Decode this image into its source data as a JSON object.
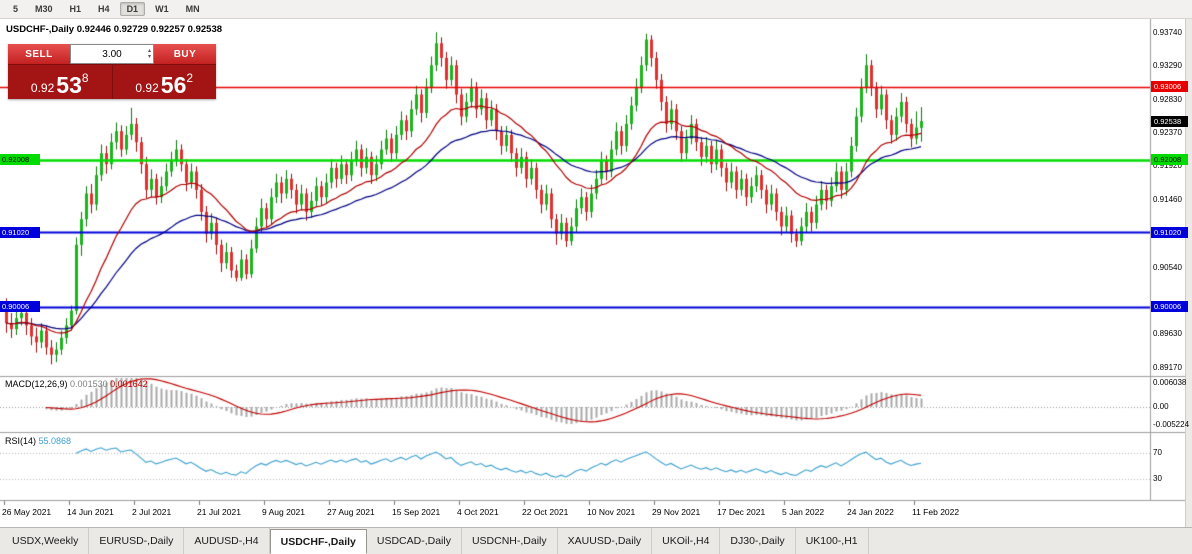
{
  "toolbar": {
    "timeframes": [
      "5",
      "M30",
      "H1",
      "H4",
      "D1",
      "W1",
      "MN"
    ],
    "active": "D1"
  },
  "chart": {
    "header": "USDCHF-,Daily 0.92446 0.92729 0.92257 0.92538"
  },
  "trade": {
    "sell_label": "SELL",
    "buy_label": "BUY",
    "volume": "3.00",
    "sell": {
      "base": "0.92",
      "big": "53",
      "sup": "8"
    },
    "buy": {
      "base": "0.92",
      "big": "56",
      "sup": "2"
    }
  },
  "price_axis": {
    "ticks": [
      "0.93740",
      "0.93290",
      "0.92830",
      "0.92370",
      "0.91920",
      "0.91460",
      "0.90540",
      "0.89630",
      "0.89170"
    ],
    "tags": [
      {
        "label": "0.93006",
        "price": 0.93006,
        "bg": "#e80000",
        "fg": "#ffffff",
        "name": "resistance-red-price-tag",
        "interactable": true
      },
      {
        "label": "0.92538",
        "price": 0.92538,
        "bg": "#000000",
        "fg": "#ffffff",
        "name": "last-price-tag",
        "interactable": false
      },
      {
        "label": "0.92008",
        "price": 0.92008,
        "bg": "#00dc00",
        "fg": "#000000",
        "name": "support-green-price-tag",
        "interactable": true
      },
      {
        "label": "0.91020",
        "price": 0.9102,
        "bg": "#0000dc",
        "fg": "#ffffff",
        "name": "support-blue-upper-price-tag",
        "interactable": true
      },
      {
        "label": "0.90006",
        "price": 0.90006,
        "bg": "#0000dc",
        "fg": "#ffffff",
        "name": "support-blue-lower-price-tag",
        "interactable": true
      }
    ],
    "left_tags": [
      {
        "label": "0.92008",
        "price": 0.92008,
        "bg": "#00dc00",
        "fg": "#000000"
      },
      {
        "label": "0.91020",
        "price": 0.9102,
        "bg": "#0000dc",
        "fg": "#ffffff"
      },
      {
        "label": "0.90006",
        "price": 0.90006,
        "bg": "#0000dc",
        "fg": "#ffffff"
      }
    ]
  },
  "macd_panel": {
    "name": "MACD(12,26,9)",
    "value_main": "0.001530",
    "value_signal": "0.001642",
    "axis": [
      "0.006038",
      "0.00",
      "-0.005224"
    ]
  },
  "rsi_panel": {
    "name": "RSI(14)",
    "value": "55.0868",
    "levels": [
      "70",
      "30"
    ]
  },
  "dates": [
    "26 May 2021",
    "14 Jun 2021",
    "2 Jul 2021",
    "21 Jul 2021",
    "9 Aug 2021",
    "27 Aug 2021",
    "15 Sep 2021",
    "4 Oct 2021",
    "22 Oct 2021",
    "10 Nov 2021",
    "29 Nov 2021",
    "17 Dec 2021",
    "5 Jan 2022",
    "24 Jan 2022",
    "11 Feb 2022"
  ],
  "tabs": [
    {
      "label": "USDX,Weekly",
      "active": false
    },
    {
      "label": "EURUSD-,Daily",
      "active": false
    },
    {
      "label": "AUDUSD-,H4",
      "active": false
    },
    {
      "label": "USDCHF-,Daily",
      "active": true
    },
    {
      "label": "USDCAD-,Daily",
      "active": false
    },
    {
      "label": "USDCNH-,Daily",
      "active": false
    },
    {
      "label": "XAUUSD-,Daily",
      "active": false
    },
    {
      "label": "UKOil-,H4",
      "active": false
    },
    {
      "label": "DJ30-,Daily",
      "active": false
    },
    {
      "label": "UK100-,H1",
      "active": false
    }
  ],
  "chart_data": {
    "type": "candlestick",
    "symbol": "USDCHF-",
    "timeframe": "Daily",
    "last_ohlc": {
      "open": 0.92446,
      "high": 0.92729,
      "low": 0.92257,
      "close": 0.92538
    },
    "y_axis_range": [
      0.8917,
      0.9374
    ],
    "levels": [
      {
        "price": 0.93006,
        "color": "#e80000",
        "width": 1.4
      },
      {
        "price": 0.92008,
        "color": "#00dc00",
        "width": 2.6
      },
      {
        "price": 0.9102,
        "color": "#0000dc",
        "width": 2
      },
      {
        "price": 0.90006,
        "color": "#0000dc",
        "width": 2
      }
    ],
    "indicators": {
      "ma_fast_ema": 20,
      "ma_slow_ema": 40,
      "macd": [
        12,
        26,
        9
      ],
      "rsi": 14
    },
    "colors": {
      "bull": "#1cb41c",
      "bull_border": "#0b7a0b",
      "bear": "#e03030",
      "bear_border": "#9c1010",
      "ma_fast": "#b00000",
      "ma_slow": "#000080",
      "macd_hist": "#a8a8a8",
      "macd_signal": "#c00000",
      "rsi": "#3da0d0"
    },
    "ohlc": [
      [
        0.8995,
        0.9012,
        0.8965,
        0.8978
      ],
      [
        0.8978,
        0.8992,
        0.8958,
        0.897
      ],
      [
        0.897,
        0.8996,
        0.8962,
        0.8985
      ],
      [
        0.8985,
        0.9005,
        0.8975,
        0.8992
      ],
      [
        0.8992,
        0.9,
        0.8962,
        0.8975
      ],
      [
        0.8975,
        0.8985,
        0.8948,
        0.896
      ],
      [
        0.896,
        0.8972,
        0.8938,
        0.8952
      ],
      [
        0.8952,
        0.8978,
        0.8944,
        0.8968
      ],
      [
        0.8968,
        0.8975,
        0.8935,
        0.8945
      ],
      [
        0.8945,
        0.8955,
        0.8922,
        0.8935
      ],
      [
        0.8935,
        0.8952,
        0.8925,
        0.8942
      ],
      [
        0.8942,
        0.8968,
        0.8935,
        0.8958
      ],
      [
        0.8958,
        0.8985,
        0.895,
        0.8975
      ],
      [
        0.8975,
        0.9002,
        0.8968,
        0.8995
      ],
      [
        0.8995,
        0.9095,
        0.899,
        0.9085
      ],
      [
        0.9085,
        0.913,
        0.907,
        0.912
      ],
      [
        0.912,
        0.9165,
        0.911,
        0.9155
      ],
      [
        0.9155,
        0.9168,
        0.9128,
        0.914
      ],
      [
        0.914,
        0.9192,
        0.9132,
        0.918
      ],
      [
        0.918,
        0.9222,
        0.9172,
        0.921
      ],
      [
        0.921,
        0.922,
        0.9182,
        0.9195
      ],
      [
        0.9195,
        0.9237,
        0.9188,
        0.9225
      ],
      [
        0.9225,
        0.9252,
        0.9215,
        0.924
      ],
      [
        0.924,
        0.9248,
        0.9205,
        0.9215
      ],
      [
        0.9215,
        0.9247,
        0.9208,
        0.9235
      ],
      [
        0.9235,
        0.9272,
        0.9228,
        0.925
      ],
      [
        0.925,
        0.9258,
        0.9212,
        0.9225
      ],
      [
        0.9225,
        0.9232,
        0.9182,
        0.9195
      ],
      [
        0.9195,
        0.9205,
        0.9148,
        0.916
      ],
      [
        0.916,
        0.9188,
        0.915,
        0.9175
      ],
      [
        0.9175,
        0.9182,
        0.914,
        0.915
      ],
      [
        0.915,
        0.9178,
        0.9142,
        0.9165
      ],
      [
        0.9165,
        0.9196,
        0.9158,
        0.9185
      ],
      [
        0.9185,
        0.9212,
        0.9178,
        0.92
      ],
      [
        0.92,
        0.9228,
        0.9192,
        0.9215
      ],
      [
        0.9215,
        0.9222,
        0.9185,
        0.9195
      ],
      [
        0.9195,
        0.9202,
        0.9158,
        0.917
      ],
      [
        0.917,
        0.9196,
        0.9162,
        0.9185
      ],
      [
        0.9185,
        0.9192,
        0.9148,
        0.916
      ],
      [
        0.916,
        0.9168,
        0.9118,
        0.913
      ],
      [
        0.913,
        0.9138,
        0.9088,
        0.91
      ],
      [
        0.91,
        0.9128,
        0.9092,
        0.9115
      ],
      [
        0.9115,
        0.9122,
        0.9072,
        0.9085
      ],
      [
        0.9085,
        0.9092,
        0.9048,
        0.906
      ],
      [
        0.906,
        0.9088,
        0.9052,
        0.9075
      ],
      [
        0.9075,
        0.9082,
        0.904,
        0.905
      ],
      [
        0.905,
        0.9058,
        0.9035,
        0.904
      ],
      [
        0.904,
        0.9078,
        0.9036,
        0.9065
      ],
      [
        0.9065,
        0.9072,
        0.9038,
        0.9045
      ],
      [
        0.9045,
        0.9092,
        0.904,
        0.908
      ],
      [
        0.908,
        0.9122,
        0.9074,
        0.911
      ],
      [
        0.911,
        0.9148,
        0.9102,
        0.9135
      ],
      [
        0.9135,
        0.9142,
        0.9108,
        0.912
      ],
      [
        0.912,
        0.9162,
        0.9112,
        0.915
      ],
      [
        0.915,
        0.9182,
        0.9142,
        0.917
      ],
      [
        0.917,
        0.9178,
        0.9142,
        0.9155
      ],
      [
        0.9155,
        0.9187,
        0.9148,
        0.9175
      ],
      [
        0.9175,
        0.9182,
        0.9148,
        0.916
      ],
      [
        0.916,
        0.9168,
        0.9128,
        0.914
      ],
      [
        0.914,
        0.9167,
        0.9132,
        0.9155
      ],
      [
        0.9155,
        0.9162,
        0.9118,
        0.913
      ],
      [
        0.913,
        0.9157,
        0.9122,
        0.9145
      ],
      [
        0.9145,
        0.9177,
        0.9138,
        0.9165
      ],
      [
        0.9165,
        0.9172,
        0.9138,
        0.915
      ],
      [
        0.915,
        0.9182,
        0.9142,
        0.917
      ],
      [
        0.917,
        0.9202,
        0.9162,
        0.919
      ],
      [
        0.919,
        0.9197,
        0.9163,
        0.9175
      ],
      [
        0.9175,
        0.9207,
        0.9168,
        0.9195
      ],
      [
        0.9195,
        0.9202,
        0.9168,
        0.918
      ],
      [
        0.918,
        0.9212,
        0.9172,
        0.92
      ],
      [
        0.92,
        0.9227,
        0.9192,
        0.9215
      ],
      [
        0.9215,
        0.9222,
        0.9178,
        0.919
      ],
      [
        0.919,
        0.9217,
        0.9182,
        0.9205
      ],
      [
        0.9205,
        0.9212,
        0.9168,
        0.918
      ],
      [
        0.918,
        0.9207,
        0.9172,
        0.9195
      ],
      [
        0.9195,
        0.9227,
        0.9188,
        0.9215
      ],
      [
        0.9215,
        0.9242,
        0.9208,
        0.923
      ],
      [
        0.923,
        0.9237,
        0.9198,
        0.921
      ],
      [
        0.921,
        0.9247,
        0.9202,
        0.9235
      ],
      [
        0.9235,
        0.9267,
        0.9228,
        0.9255
      ],
      [
        0.9255,
        0.9262,
        0.9228,
        0.924
      ],
      [
        0.924,
        0.9282,
        0.9232,
        0.927
      ],
      [
        0.927,
        0.9302,
        0.9262,
        0.929
      ],
      [
        0.929,
        0.9297,
        0.9252,
        0.9265
      ],
      [
        0.9265,
        0.9312,
        0.9258,
        0.93
      ],
      [
        0.93,
        0.9342,
        0.9292,
        0.933
      ],
      [
        0.933,
        0.9375,
        0.9322,
        0.936
      ],
      [
        0.936,
        0.9368,
        0.9328,
        0.934
      ],
      [
        0.934,
        0.9348,
        0.9298,
        0.931
      ],
      [
        0.931,
        0.9342,
        0.9302,
        0.933
      ],
      [
        0.933,
        0.9337,
        0.9278,
        0.929
      ],
      [
        0.929,
        0.9298,
        0.9248,
        0.926
      ],
      [
        0.926,
        0.9292,
        0.9252,
        0.928
      ],
      [
        0.928,
        0.9312,
        0.9272,
        0.93
      ],
      [
        0.93,
        0.9307,
        0.9258,
        0.927
      ],
      [
        0.927,
        0.9297,
        0.9262,
        0.9285
      ],
      [
        0.9285,
        0.9292,
        0.9243,
        0.9255
      ],
      [
        0.9255,
        0.9282,
        0.9247,
        0.927
      ],
      [
        0.927,
        0.9277,
        0.9228,
        0.924
      ],
      [
        0.924,
        0.9247,
        0.9208,
        0.922
      ],
      [
        0.922,
        0.9247,
        0.9212,
        0.9235
      ],
      [
        0.9235,
        0.9242,
        0.9198,
        0.921
      ],
      [
        0.921,
        0.9217,
        0.9178,
        0.919
      ],
      [
        0.919,
        0.9217,
        0.9182,
        0.9205
      ],
      [
        0.9205,
        0.9212,
        0.9163,
        0.9175
      ],
      [
        0.9175,
        0.9202,
        0.9167,
        0.919
      ],
      [
        0.919,
        0.9197,
        0.9148,
        0.916
      ],
      [
        0.916,
        0.9167,
        0.9128,
        0.914
      ],
      [
        0.914,
        0.9167,
        0.9132,
        0.9155
      ],
      [
        0.9155,
        0.9162,
        0.9108,
        0.912
      ],
      [
        0.912,
        0.9127,
        0.9085,
        0.91
      ],
      [
        0.91,
        0.9127,
        0.9092,
        0.9115
      ],
      [
        0.9115,
        0.9122,
        0.9082,
        0.909
      ],
      [
        0.909,
        0.9122,
        0.9084,
        0.911
      ],
      [
        0.911,
        0.9147,
        0.9102,
        0.9135
      ],
      [
        0.9135,
        0.9162,
        0.9127,
        0.915
      ],
      [
        0.915,
        0.9157,
        0.9118,
        0.913
      ],
      [
        0.913,
        0.9167,
        0.9122,
        0.9155
      ],
      [
        0.9155,
        0.9187,
        0.9147,
        0.9175
      ],
      [
        0.9175,
        0.9212,
        0.9167,
        0.92
      ],
      [
        0.92,
        0.9207,
        0.9173,
        0.9185
      ],
      [
        0.9185,
        0.9227,
        0.9177,
        0.9215
      ],
      [
        0.9215,
        0.9252,
        0.9207,
        0.924
      ],
      [
        0.924,
        0.9247,
        0.9208,
        0.922
      ],
      [
        0.922,
        0.9262,
        0.9212,
        0.925
      ],
      [
        0.925,
        0.9287,
        0.9242,
        0.9275
      ],
      [
        0.9275,
        0.9312,
        0.9267,
        0.93
      ],
      [
        0.93,
        0.9342,
        0.9292,
        0.933
      ],
      [
        0.933,
        0.9373,
        0.9322,
        0.9365
      ],
      [
        0.9365,
        0.9371,
        0.9328,
        0.934
      ],
      [
        0.934,
        0.9348,
        0.9298,
        0.931
      ],
      [
        0.931,
        0.9318,
        0.9268,
        0.928
      ],
      [
        0.928,
        0.9288,
        0.9238,
        0.925
      ],
      [
        0.925,
        0.9282,
        0.9242,
        0.927
      ],
      [
        0.927,
        0.9277,
        0.9228,
        0.924
      ],
      [
        0.924,
        0.9247,
        0.9198,
        0.921
      ],
      [
        0.921,
        0.9242,
        0.9202,
        0.923
      ],
      [
        0.923,
        0.9262,
        0.9222,
        0.925
      ],
      [
        0.925,
        0.9257,
        0.9213,
        0.9225
      ],
      [
        0.9225,
        0.9232,
        0.9193,
        0.9205
      ],
      [
        0.9205,
        0.9232,
        0.9197,
        0.922
      ],
      [
        0.922,
        0.9227,
        0.9183,
        0.9195
      ],
      [
        0.9195,
        0.9227,
        0.9187,
        0.9215
      ],
      [
        0.9215,
        0.9222,
        0.9178,
        0.919
      ],
      [
        0.919,
        0.9197,
        0.9158,
        0.917
      ],
      [
        0.917,
        0.9197,
        0.9162,
        0.9185
      ],
      [
        0.9185,
        0.9192,
        0.9148,
        0.916
      ],
      [
        0.916,
        0.9187,
        0.9152,
        0.9175
      ],
      [
        0.9175,
        0.9182,
        0.9138,
        0.915
      ],
      [
        0.915,
        0.9177,
        0.9142,
        0.9165
      ],
      [
        0.9165,
        0.9192,
        0.9157,
        0.918
      ],
      [
        0.918,
        0.9187,
        0.9148,
        0.916
      ],
      [
        0.916,
        0.9167,
        0.9128,
        0.914
      ],
      [
        0.914,
        0.9167,
        0.9132,
        0.9155
      ],
      [
        0.9155,
        0.9162,
        0.9118,
        0.913
      ],
      [
        0.913,
        0.9137,
        0.9098,
        0.911
      ],
      [
        0.911,
        0.9137,
        0.9102,
        0.9125
      ],
      [
        0.9125,
        0.9132,
        0.9088,
        0.91
      ],
      [
        0.91,
        0.9107,
        0.9082,
        0.909
      ],
      [
        0.909,
        0.9122,
        0.9084,
        0.911
      ],
      [
        0.911,
        0.9142,
        0.9102,
        0.913
      ],
      [
        0.913,
        0.9137,
        0.9103,
        0.9115
      ],
      [
        0.9115,
        0.9152,
        0.9107,
        0.914
      ],
      [
        0.914,
        0.9172,
        0.9132,
        0.916
      ],
      [
        0.916,
        0.9167,
        0.9133,
        0.9145
      ],
      [
        0.9145,
        0.9177,
        0.9137,
        0.9165
      ],
      [
        0.9165,
        0.9197,
        0.9157,
        0.9185
      ],
      [
        0.9185,
        0.9192,
        0.9148,
        0.916
      ],
      [
        0.916,
        0.9197,
        0.9152,
        0.9185
      ],
      [
        0.9185,
        0.9232,
        0.9177,
        0.922
      ],
      [
        0.922,
        0.9272,
        0.9212,
        0.926
      ],
      [
        0.926,
        0.9312,
        0.9252,
        0.93
      ],
      [
        0.93,
        0.9345,
        0.9292,
        0.933
      ],
      [
        0.933,
        0.9337,
        0.9288,
        0.93
      ],
      [
        0.93,
        0.9307,
        0.9258,
        0.927
      ],
      [
        0.927,
        0.9302,
        0.9262,
        0.929
      ],
      [
        0.929,
        0.9297,
        0.9243,
        0.9255
      ],
      [
        0.9255,
        0.9262,
        0.9223,
        0.9235
      ],
      [
        0.9235,
        0.9272,
        0.9227,
        0.926
      ],
      [
        0.926,
        0.9292,
        0.9252,
        0.928
      ],
      [
        0.928,
        0.9287,
        0.9238,
        0.925
      ],
      [
        0.925,
        0.9257,
        0.9218,
        0.923
      ],
      [
        0.923,
        0.9267,
        0.9222,
        0.9245
      ],
      [
        0.92446,
        0.92729,
        0.92257,
        0.92538
      ]
    ]
  }
}
